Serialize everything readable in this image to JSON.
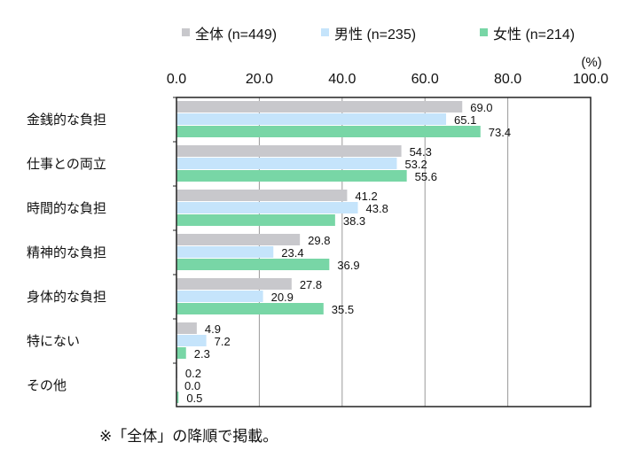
{
  "chart_data": {
    "type": "bar",
    "orientation": "horizontal",
    "unit_label": "(%)",
    "xlim": [
      0,
      100
    ],
    "ticks": [
      "0.0",
      "20.0",
      "40.0",
      "60.0",
      "80.0",
      "100.0"
    ],
    "tick_values": [
      0,
      20,
      40,
      60,
      80,
      100
    ],
    "grid": true,
    "legend_position": "top",
    "categories": [
      "金銭的な負担",
      "仕事との両立",
      "時間的な負担",
      "精神的な負担",
      "身体的な負担",
      "特にない",
      "その他"
    ],
    "series": [
      {
        "name": "全体 (n=449)",
        "color": "#c8c8cc",
        "values": [
          69.0,
          54.3,
          41.2,
          29.8,
          27.8,
          4.9,
          0.2
        ]
      },
      {
        "name": "男性 (n=235)",
        "color": "#c5e4fb",
        "values": [
          65.1,
          53.2,
          43.8,
          23.4,
          20.9,
          7.2,
          0.0
        ]
      },
      {
        "name": "女性 (n=214)",
        "color": "#78d6a6",
        "values": [
          73.4,
          55.6,
          38.3,
          36.9,
          35.5,
          2.3,
          0.5
        ]
      }
    ],
    "footnote": "※「全体」の降順で掲載。"
  }
}
